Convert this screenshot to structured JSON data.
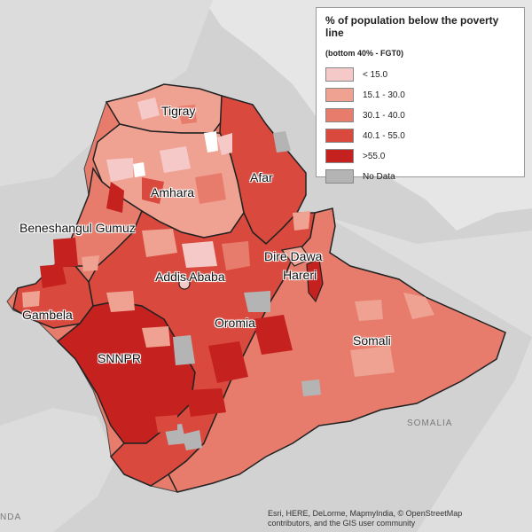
{
  "colors": {
    "class1": "#f6c9c9",
    "class2": "#efa192",
    "class3": "#e77c6c",
    "class4": "#d9493d",
    "class5": "#c4211f",
    "nodata": "#b4b4b4"
  },
  "legend": {
    "title": "% of population below the poverty line",
    "subtitle": "(bottom 40% - FGT0)",
    "items": [
      {
        "label": "< 15.0",
        "color": "#f6c9c9"
      },
      {
        "label": "15.1 - 30.0",
        "color": "#efa192"
      },
      {
        "label": "30.1 - 40.0",
        "color": "#e77c6c"
      },
      {
        "label": "40.1 - 55.0",
        "color": "#d9493d"
      },
      {
        "label": ">55.0",
        "color": "#c4211f"
      },
      {
        "label": "No Data",
        "color": "#b4b4b4"
      }
    ]
  },
  "regions": [
    {
      "name": "Tigray"
    },
    {
      "name": "Afar"
    },
    {
      "name": "Amhara"
    },
    {
      "name": "Beneshangul Gumuz"
    },
    {
      "name": "Dire Dawa"
    },
    {
      "name": "Hareri"
    },
    {
      "name": "Addis Ababa"
    },
    {
      "name": "Gambela"
    },
    {
      "name": "Oromia"
    },
    {
      "name": "Somali"
    },
    {
      "name": "SNNPR"
    }
  ],
  "neighbors": {
    "somalia": "SOMALIA",
    "edge": "NDA"
  },
  "attribution": {
    "line1": "Esri, HERE, DeLorme, MapmyIndia, © OpenStreetMap",
    "line2": "contributors, and the GIS user community"
  }
}
